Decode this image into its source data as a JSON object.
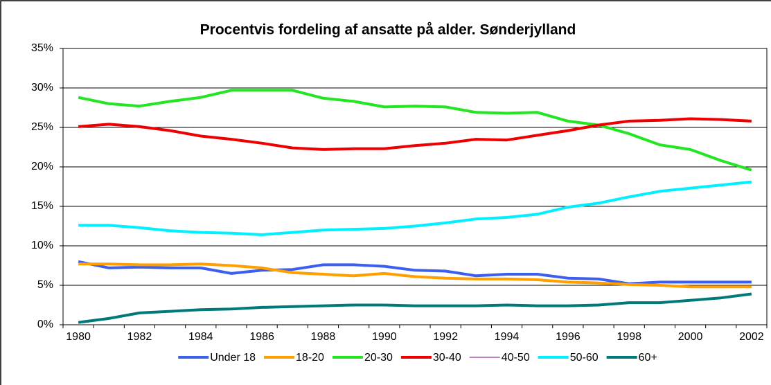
{
  "chart_data": {
    "type": "line",
    "title": "Procentvis fordeling af ansatte på alder. Sønderjylland",
    "categories": [
      "1980",
      null,
      "1982",
      null,
      "1984",
      null,
      "1986",
      null,
      "1988",
      null,
      "1990",
      null,
      "1992",
      null,
      "1994",
      null,
      "1996",
      null,
      "1998",
      null,
      "2000",
      null,
      "2002"
    ],
    "ylim": [
      0,
      35
    ],
    "yticks": [
      {
        "value": 0,
        "label": "0%"
      },
      {
        "value": 5,
        "label": "5%"
      },
      {
        "value": 10,
        "label": "10%"
      },
      {
        "value": 15,
        "label": "15%"
      },
      {
        "value": 20,
        "label": "20%"
      },
      {
        "value": 25,
        "label": "25%"
      },
      {
        "value": 30,
        "label": "30%"
      },
      {
        "value": 35,
        "label": "35%"
      }
    ],
    "grid": true,
    "legend": "bottom",
    "series": [
      {
        "name": "Under 18",
        "color": "#3d5ff0",
        "line_width": 4,
        "values": [
          8.0,
          7.2,
          7.3,
          7.2,
          7.2,
          6.5,
          6.9,
          7.0,
          7.6,
          7.6,
          7.4,
          6.9,
          6.8,
          6.2,
          6.4,
          6.4,
          5.9,
          5.8,
          5.2,
          5.4,
          5.4,
          5.4,
          5.4
        ]
      },
      {
        "name": "18-20",
        "color": "#ffa000",
        "line_width": 4,
        "values": [
          7.7,
          7.7,
          7.6,
          7.6,
          7.7,
          7.5,
          7.2,
          6.6,
          6.4,
          6.2,
          6.5,
          6.1,
          5.9,
          5.8,
          5.8,
          5.7,
          5.4,
          5.3,
          5.1,
          5.0,
          4.8,
          4.8,
          4.8
        ]
      },
      {
        "name": "20-30",
        "color": "#22e622",
        "line_width": 4,
        "values": [
          28.8,
          28.0,
          27.7,
          28.3,
          28.8,
          29.7,
          29.7,
          29.7,
          28.7,
          28.3,
          27.6,
          27.7,
          27.6,
          26.9,
          26.8,
          26.9,
          25.8,
          25.3,
          24.2,
          22.8,
          22.2,
          20.8,
          19.6
        ]
      },
      {
        "name": "30-40",
        "color": "#ee0000",
        "line_width": 4,
        "values": [
          25.1,
          25.4,
          25.1,
          24.6,
          23.9,
          23.5,
          23.0,
          22.4,
          22.2,
          22.3,
          22.3,
          22.7,
          23.0,
          23.5,
          23.4,
          24.0,
          24.6,
          25.3,
          25.8,
          25.9,
          26.1,
          26.0,
          25.8
        ]
      },
      {
        "name": "40-50",
        "color": "#800080",
        "line_width": 1,
        "values": [
          null,
          null,
          null,
          null,
          null,
          null,
          null,
          null,
          null,
          null,
          null,
          null,
          null,
          null,
          null,
          null,
          null,
          null,
          null,
          null,
          null,
          null,
          null
        ]
      },
      {
        "name": "50-60",
        "color": "#00f0ff",
        "line_width": 4,
        "values": [
          12.6,
          12.6,
          12.3,
          11.9,
          11.7,
          11.6,
          11.4,
          11.7,
          12.0,
          12.1,
          12.2,
          12.5,
          12.9,
          13.4,
          13.6,
          14.0,
          14.9,
          15.4,
          16.2,
          16.9,
          17.3,
          17.7,
          18.1
        ]
      },
      {
        "name": "60+",
        "color": "#007a78",
        "line_width": 4,
        "values": [
          0.3,
          0.8,
          1.5,
          1.7,
          1.9,
          2.0,
          2.2,
          2.3,
          2.4,
          2.5,
          2.5,
          2.4,
          2.4,
          2.4,
          2.5,
          2.4,
          2.4,
          2.5,
          2.8,
          2.8,
          3.1,
          3.4,
          3.9
        ]
      }
    ]
  }
}
